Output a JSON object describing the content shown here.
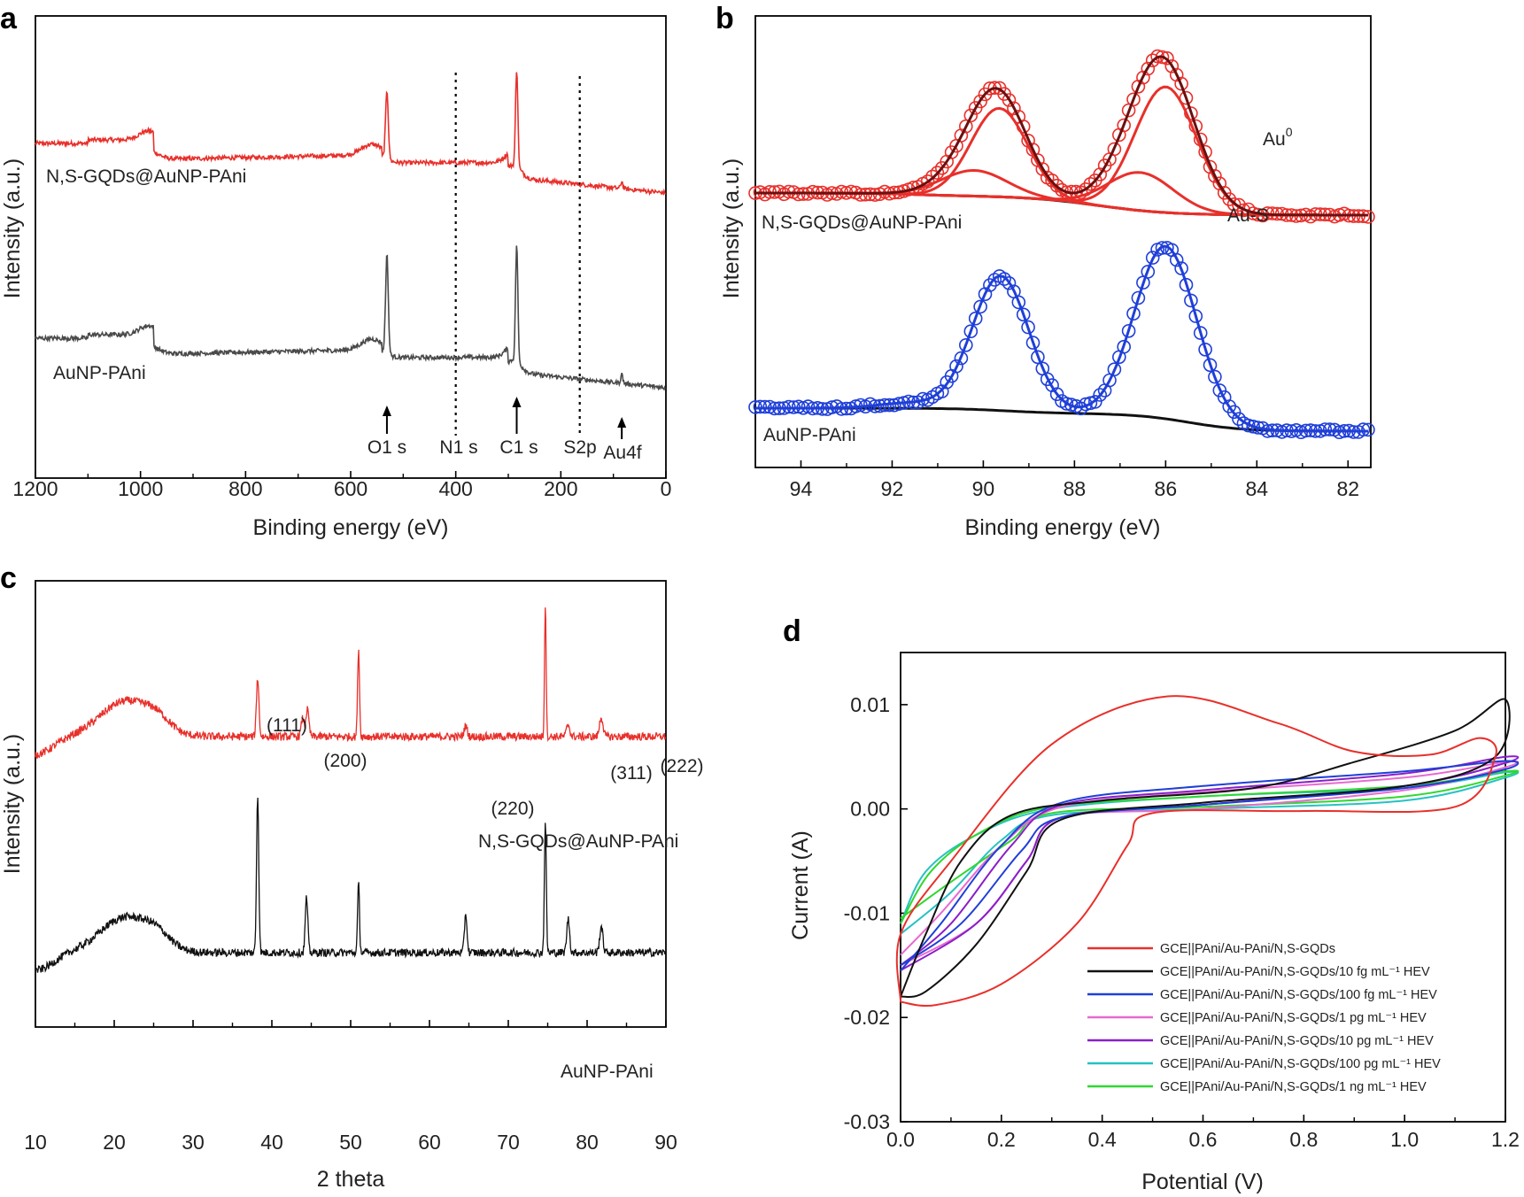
{
  "colors": {
    "red": "#e8302b",
    "black": "#111111",
    "blue": "#1f3fd8",
    "pink": "#e86ad0",
    "purple": "#8a1fc8",
    "cyan": "#27c2c2",
    "green": "#2fd82f",
    "darkred": "#6b1010"
  },
  "chart_data": [
    {
      "panel": "a",
      "type": "line",
      "xlabel": "Binding energy (eV)",
      "ylabel": "Intensity (a.u.)",
      "xlim": [
        1200,
        0
      ],
      "xticks": [
        "1200",
        "1000",
        "800",
        "600",
        "400",
        "200",
        "0"
      ],
      "series": [
        {
          "name": "N,S-GQDs@AuNP-PAni",
          "color": "red"
        },
        {
          "name": "AuNP-PAni",
          "color": "black"
        }
      ],
      "peak_markers": [
        {
          "label": "O1 s",
          "energy": 531
        },
        {
          "label": "N1 s",
          "energy": 400
        },
        {
          "label": "C1 s",
          "energy": 284
        },
        {
          "label": "S2p",
          "energy": 164
        },
        {
          "label": "Au4f",
          "energy": 84
        }
      ]
    },
    {
      "panel": "b",
      "type": "line",
      "xlabel": "Binding energy (eV)",
      "ylabel": "Intensity (a.u.)",
      "xlim": [
        95,
        81.5
      ],
      "xticks": [
        "94",
        "92",
        "90",
        "88",
        "86",
        "84",
        "82"
      ],
      "series": [
        {
          "name": "N,S-GQDs@AuNP-PAni",
          "color": "red",
          "peaks_eV": [
            89.7,
            86.0
          ]
        },
        {
          "name": "AuNP-PAni",
          "color": "blue",
          "peaks_eV": [
            89.6,
            86.0
          ]
        }
      ],
      "annotations": {
        "au0_label": "Au",
        "au0_sup": "0",
        "aus_label": "Au-S"
      }
    },
    {
      "panel": "c",
      "type": "line",
      "xlabel": "2 theta",
      "ylabel": "Intensity (a.u.)",
      "xlim": [
        10,
        90
      ],
      "xticks": [
        "10",
        "20",
        "30",
        "40",
        "50",
        "60",
        "70",
        "80",
        "90"
      ],
      "series": [
        {
          "name": "N,S-GQDs@AuNP-PAni",
          "color": "red"
        },
        {
          "name": "AuNP-PAni",
          "color": "black"
        }
      ],
      "peaks_2theta": [
        38.2,
        44.4,
        51.0,
        64.6,
        74.7,
        77.6,
        81.7
      ],
      "reflections": [
        {
          "label": "(111)",
          "two_theta": 38.2
        },
        {
          "label": "(200)",
          "two_theta": 44.4
        },
        {
          "label": "(220)",
          "two_theta": 64.6
        },
        {
          "label": "(311)",
          "two_theta": 77.6
        },
        {
          "label": "(222)",
          "two_theta": 81.7
        }
      ]
    },
    {
      "panel": "d",
      "type": "line",
      "xlabel": "Potential (V)",
      "ylabel": "Current (A)",
      "xlim": [
        0,
        1.2
      ],
      "ylim": [
        -0.03,
        0.015
      ],
      "xticks": [
        "0.0",
        "0.2",
        "0.4",
        "0.6",
        "0.8",
        "1.0",
        "1.2"
      ],
      "yticks": [
        "0.01",
        "0.00",
        "-0.01",
        "-0.02",
        "-0.03"
      ],
      "series": [
        {
          "name": "GCE||PAni/Au-PAni/N,S-GQDs",
          "color": "red"
        },
        {
          "name": "GCE||PAni/Au-PAni/N,S-GQDs/10 fg mL⁻¹ HEV",
          "color": "black"
        },
        {
          "name": "GCE||PAni/Au-PAni/N,S-GQDs/100 fg mL⁻¹ HEV",
          "color": "blue"
        },
        {
          "name": "GCE||PAni/Au-PAni/N,S-GQDs/1 pg mL⁻¹ HEV",
          "color": "pink"
        },
        {
          "name": "GCE||PAni/Au-PAni/N,S-GQDs/10 pg mL⁻¹ HEV",
          "color": "purple"
        },
        {
          "name": "GCE||PAni/Au-PAni/N,S-GQDs/100 pg mL⁻¹ HEV",
          "color": "cyan"
        },
        {
          "name": "GCE||PAni/Au-PAni/N,S-GQDs/1 ng mL⁻¹ HEV",
          "color": "green"
        }
      ]
    }
  ]
}
